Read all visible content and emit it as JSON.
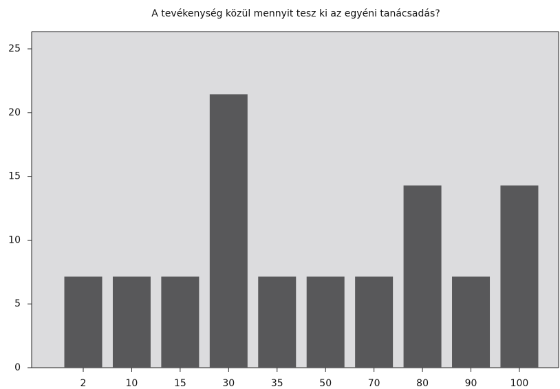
{
  "chart_data": {
    "type": "bar",
    "title": "A tevékenység közül mennyit tesz ki az egyéni tanácsadás?",
    "categories": [
      "2",
      "10",
      "15",
      "30",
      "35",
      "50",
      "70",
      "80",
      "90",
      "100"
    ],
    "values": [
      7.14,
      7.14,
      7.14,
      21.43,
      7.14,
      7.14,
      7.14,
      14.29,
      7.14,
      14.29
    ],
    "color": "#58585a",
    "ylim": [
      0,
      26.35
    ],
    "yticks": [
      0,
      5,
      10,
      15,
      20,
      25
    ],
    "grid": false
  }
}
